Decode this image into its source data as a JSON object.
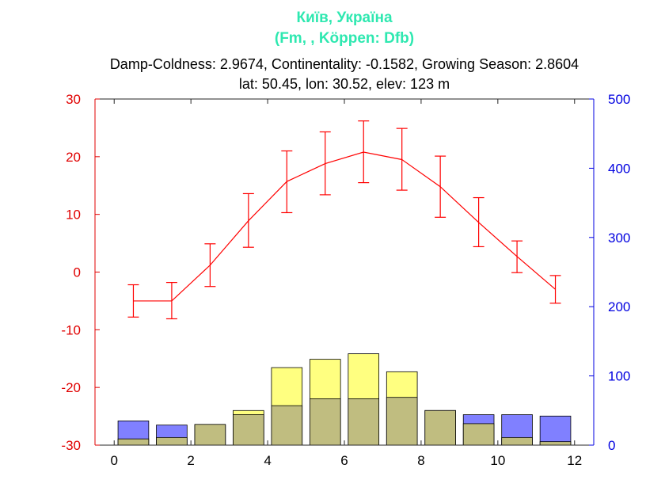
{
  "chart_data": {
    "type": "bar+line",
    "title": "Київ, Україна",
    "subtitle": "(Fm, , Köppen: Dfb)",
    "info_line1": "Damp-Coldness: 2.9674, Continentality: -0.1582, Growing Season: 2.8604",
    "info_line2": "lat: 50.45, lon: 30.52, elev: 123 m",
    "x_ticks": [
      "0",
      "2",
      "4",
      "6",
      "8",
      "10",
      "12"
    ],
    "x_tick_values": [
      0,
      2,
      4,
      6,
      8,
      10,
      12
    ],
    "xlim": [
      -0.5,
      12.5
    ],
    "ylim_left": [
      -30,
      30
    ],
    "ylim_right": [
      0,
      500
    ],
    "y_ticks_left": [
      "-30",
      "-20",
      "-10",
      "0",
      "10",
      "20",
      "30"
    ],
    "y_ticks_left_values": [
      -30,
      -20,
      -10,
      0,
      10,
      20,
      30
    ],
    "y_ticks_right": [
      "0",
      "100",
      "200",
      "300",
      "400",
      "500"
    ],
    "y_ticks_right_values": [
      0,
      100,
      200,
      300,
      400,
      500
    ],
    "temperature": {
      "x": [
        0.5,
        1.5,
        2.5,
        3.5,
        4.5,
        5.5,
        6.5,
        7.5,
        8.5,
        9.5,
        10.5,
        11.5
      ],
      "mean": [
        -5.0,
        -5.0,
        1.2,
        8.9,
        15.7,
        18.8,
        20.8,
        19.5,
        14.8,
        8.6,
        2.7,
        -3.0
      ],
      "upper": [
        -2.2,
        -1.8,
        4.9,
        13.6,
        21.0,
        24.3,
        26.2,
        24.9,
        20.1,
        12.9,
        5.4,
        -0.6
      ],
      "lower": [
        -7.8,
        -8.1,
        -2.5,
        4.3,
        10.3,
        13.4,
        15.5,
        14.2,
        9.5,
        4.4,
        -0.1,
        -5.4
      ],
      "color": "#ff0000"
    },
    "precip_bars": {
      "x": [
        0.5,
        1.5,
        2.5,
        3.5,
        4.5,
        5.5,
        6.5,
        7.5,
        8.5,
        9.5,
        10.5,
        11.5
      ],
      "yellow_top": [
        9,
        11,
        30,
        50,
        112,
        124,
        132,
        106,
        50,
        31,
        11,
        5
      ],
      "olive_top": [
        9,
        11,
        30,
        44,
        57,
        67,
        67,
        69,
        50,
        31,
        11,
        5
      ],
      "blue_top": [
        35,
        29,
        29,
        0,
        0,
        0,
        0,
        0,
        0,
        44,
        44,
        42
      ],
      "yellow_color": "#ffff80",
      "olive_color": "#c0bd80",
      "blue_color": "#8080ff"
    }
  }
}
